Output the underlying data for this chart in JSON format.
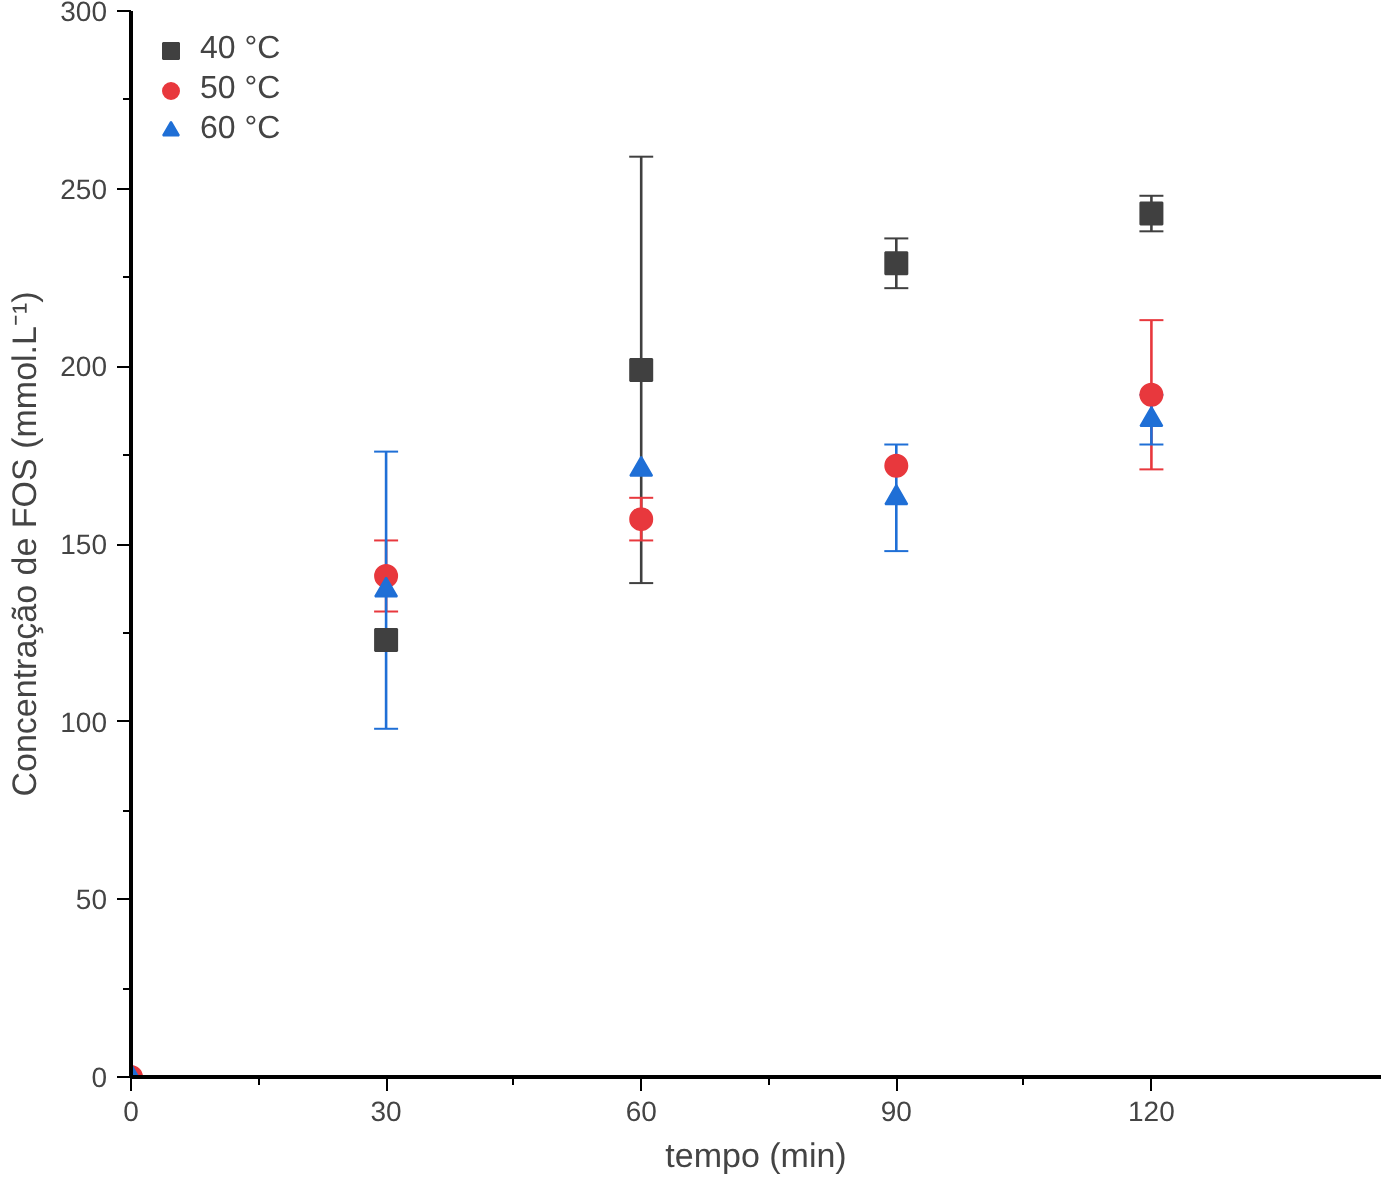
{
  "chart_data": {
    "type": "scatter",
    "xlabel": "tempo (min)",
    "ylabel": "Concentração de FOS (mmol.L⁻¹)",
    "x": [
      0,
      30,
      60,
      90,
      120
    ],
    "series": [
      {
        "name": "40 °C",
        "color": "#404040",
        "marker": "square",
        "values": [
          null,
          123,
          199,
          229,
          243
        ],
        "errors": [
          null,
          null,
          60,
          7,
          5
        ]
      },
      {
        "name": "50 °C",
        "color": "#e8383d",
        "marker": "circle",
        "values": [
          0,
          141,
          157,
          172,
          192
        ],
        "errors": [
          null,
          10,
          6,
          null,
          21
        ]
      },
      {
        "name": "60 °C",
        "color": "#1f6fd6",
        "marker": "triangle",
        "values": [
          0,
          137,
          171,
          163,
          185
        ],
        "errors": [
          null,
          39,
          null,
          15,
          7
        ]
      }
    ],
    "xlim": [
      0,
      147
    ],
    "ylim": [
      0,
      300
    ],
    "xticks": [
      0,
      30,
      60,
      90,
      120
    ],
    "yticks": [
      0,
      50,
      100,
      150,
      200,
      250,
      300
    ],
    "grid": false,
    "legend": "top left"
  }
}
